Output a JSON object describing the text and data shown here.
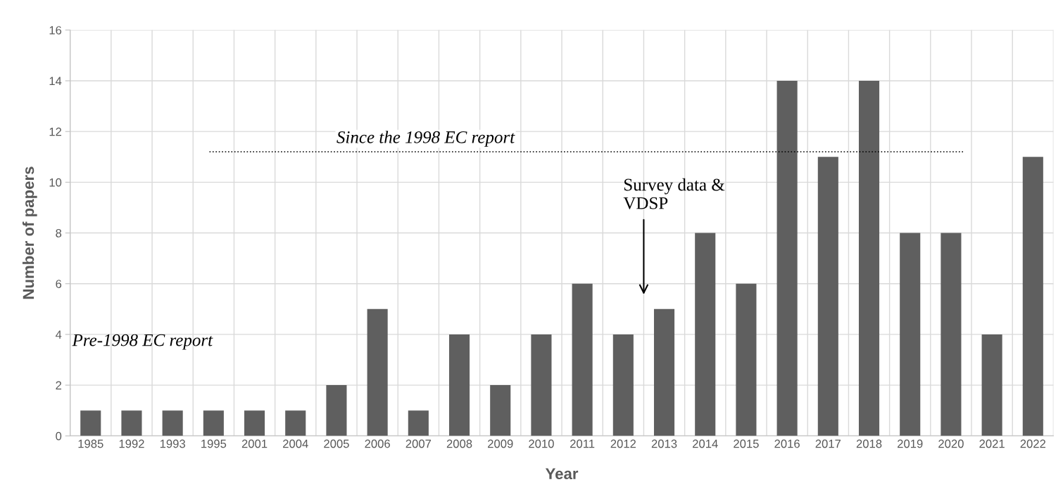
{
  "chart_data": {
    "type": "bar",
    "xlabel": "Year",
    "ylabel": "Number of papers",
    "categories": [
      "1985",
      "1992",
      "1993",
      "1995",
      "2001",
      "2004",
      "2005",
      "2006",
      "2007",
      "2008",
      "2009",
      "2010",
      "2011",
      "2012",
      "2013",
      "2014",
      "2015",
      "2016",
      "2017",
      "2018",
      "2019",
      "2020",
      "2021",
      "2022"
    ],
    "values": [
      1,
      1,
      1,
      1,
      1,
      1,
      2,
      5,
      1,
      4,
      2,
      4,
      6,
      4,
      5,
      8,
      6,
      14,
      11,
      14,
      8,
      8,
      4,
      11
    ],
    "color": "#5f5f5f",
    "ylim": [
      0,
      16
    ],
    "yticks": [
      0,
      2,
      4,
      6,
      8,
      10,
      12,
      14,
      16
    ],
    "grid": true,
    "ref_lines": [
      {
        "axis": "y",
        "value": 11.2,
        "line_style": "dotted",
        "color": "#000000"
      }
    ],
    "annotations": [
      "Pre-1998 EC report",
      "Since the 1998 EC report",
      "Survey data &\nVDSP"
    ]
  }
}
